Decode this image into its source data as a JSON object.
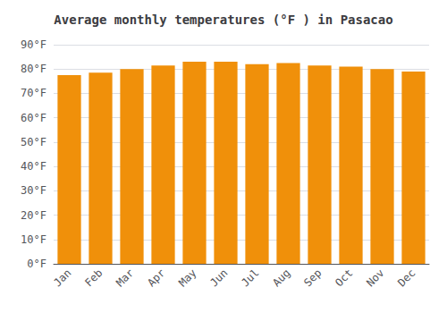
{
  "chart_data": {
    "type": "bar",
    "title": "Average monthly temperatures (°F ) in Pasacao",
    "categories": [
      "Jan",
      "Feb",
      "Mar",
      "Apr",
      "May",
      "Jun",
      "Jul",
      "Aug",
      "Sep",
      "Oct",
      "Nov",
      "Dec"
    ],
    "values": [
      77.5,
      78.5,
      80.0,
      81.5,
      83.0,
      83.0,
      82.0,
      82.5,
      81.5,
      81.0,
      80.0,
      79.0
    ],
    "color": "#F0900A",
    "ylim": [
      0,
      90
    ],
    "yticks": [
      {
        "value": 0,
        "label": "0°F"
      },
      {
        "value": 10,
        "label": "10°F"
      },
      {
        "value": 20,
        "label": "20°F"
      },
      {
        "value": 30,
        "label": "30°F"
      },
      {
        "value": 40,
        "label": "40°F"
      },
      {
        "value": 50,
        "label": "50°F"
      },
      {
        "value": 60,
        "label": "60°F"
      },
      {
        "value": 70,
        "label": "70°F"
      },
      {
        "value": 80,
        "label": "80°F"
      },
      {
        "value": 90,
        "label": "90°F"
      }
    ],
    "grid": true
  }
}
